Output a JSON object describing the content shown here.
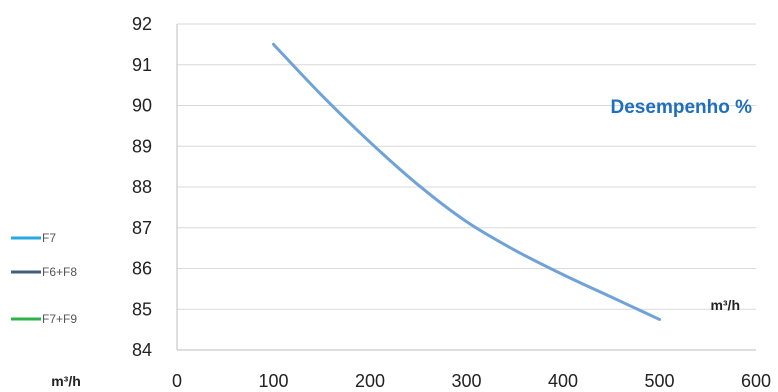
{
  "chart_data": {
    "type": "line",
    "title": "Desempenho %",
    "title_color": "#1F6FBE",
    "x_unit_label": "m³/h",
    "y_unit_label": "m³/h",
    "xlim": [
      0,
      600
    ],
    "ylim": [
      84,
      92
    ],
    "x_ticks": [
      0,
      100,
      200,
      300,
      400,
      500,
      600
    ],
    "y_ticks": [
      84,
      85,
      86,
      87,
      88,
      89,
      90,
      91,
      92
    ],
    "grid": true,
    "legend_placement": "left",
    "legend": [
      {
        "name": "F7",
        "color": "#29A9E1"
      },
      {
        "name": "F6+F8",
        "color": "#3E5F7E"
      },
      {
        "name": "F7+F9",
        "color": "#2DB34A"
      }
    ],
    "series": [
      {
        "name": "F7",
        "color": "#6FA3D8",
        "x": [
          100,
          150,
          200,
          250,
          300,
          350,
          400,
          450,
          500
        ],
        "y": [
          91.5,
          90.25,
          89.1,
          88.05,
          87.15,
          86.45,
          85.85,
          85.3,
          84.75
        ]
      }
    ]
  }
}
